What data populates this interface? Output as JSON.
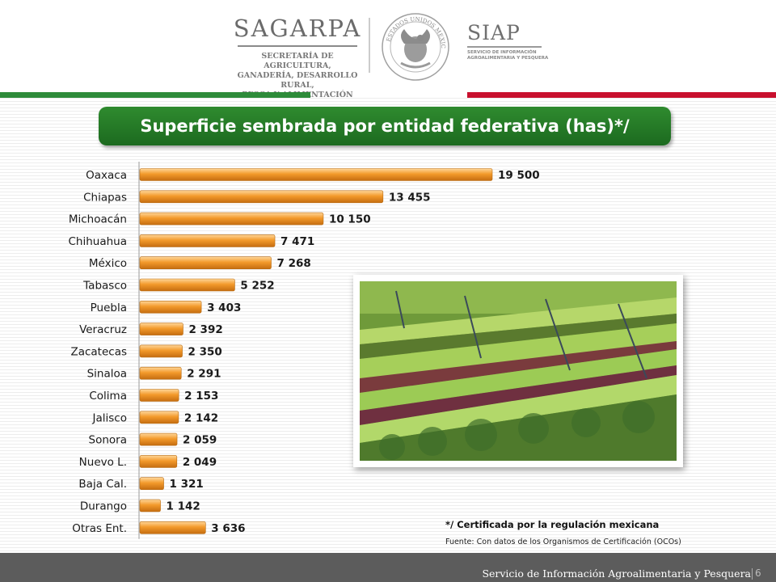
{
  "header": {
    "sagarpa_name": "SAGARPA",
    "sagarpa_subtitle": "SECRETARÍA DE AGRICULTURA,\nGANADERÍA, DESARROLLO RURAL,\nPESCA Y ALIMENTACIÓN",
    "seal_text": "ESTADOS UNIDOS MEXICANOS",
    "siap_name": "SIAP",
    "siap_subtitle": "SERVICIO DE INFORMACIÓN\nAGROALIMENTARIA Y PESQUERA"
  },
  "colors": {
    "green_band": "#2e8b3a",
    "red_band": "#c8102e",
    "bar_orange": "#f39a2b",
    "title_green": "#237a25",
    "footer_gray": "#5c5c5c"
  },
  "chart_data": {
    "type": "bar",
    "orientation": "horizontal",
    "title": "Superficie sembrada por entidad federativa (has)*/",
    "categories": [
      "Oaxaca",
      "Chiapas",
      "Michoacán",
      "Chihuahua",
      "México",
      "Tabasco",
      "Puebla",
      "Veracruz",
      "Zacatecas",
      "Sinaloa",
      "Colima",
      "Jalisco",
      "Sonora",
      "Nuevo L.",
      "Baja Cal.",
      "Durango",
      "Otras Ent."
    ],
    "values": [
      19500,
      13455,
      10150,
      7471,
      7268,
      5252,
      3403,
      2392,
      2350,
      2291,
      2153,
      2142,
      2059,
      2049,
      1321,
      1142,
      3636
    ],
    "value_labels": [
      "19 500",
      "13 455",
      "10 150",
      "7 471",
      "7 268",
      "5 252",
      "3 403",
      "2 392",
      "2 350",
      "2 291",
      "2 153",
      "2 142",
      "2 059",
      "2 049",
      "1 321",
      "1 142",
      "3 636"
    ],
    "xlabel": "",
    "ylabel": "",
    "grid": false,
    "legend": "none"
  },
  "footnote": {
    "note": "*/ Certificada por la regulación mexicana",
    "source": "Fuente: Con datos de los Organismos de Certificación (OCOs)"
  },
  "footer": {
    "text": "Servicio de Información Agroalimentaria y Pesquera",
    "page": "6"
  }
}
